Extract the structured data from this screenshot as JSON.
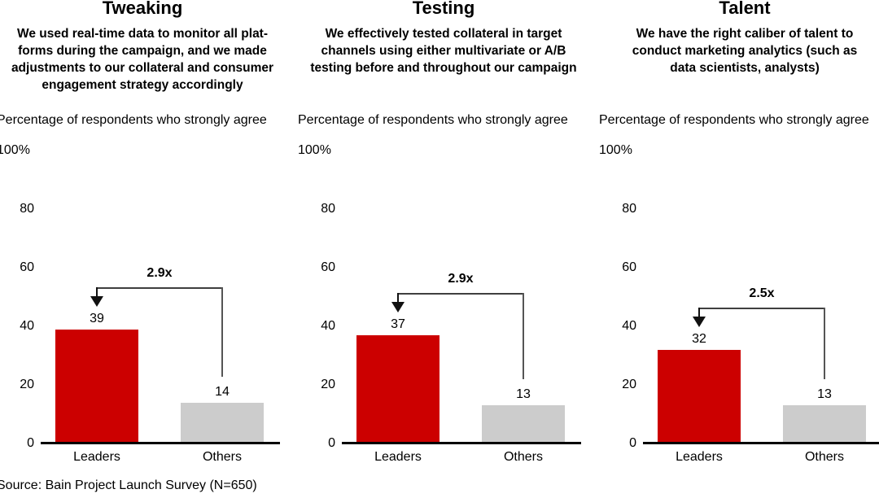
{
  "page": {
    "background": "#ffffff",
    "source_note": "Source: Bain Project Launch Survey (N=650)"
  },
  "styles": {
    "leaders_color": "#cc0000",
    "others_color": "#cccccc",
    "axis_color": "#000000",
    "bracket_color": "#3f3f3f"
  },
  "chart_data": [
    {
      "type": "bar",
      "title": "Tweaking",
      "subtitle": "We used real-time data to monitor all platforms during the campaign, and we made adjustments to our collateral and consumer engagement strategy accordingly",
      "subtitle_lines": [
        "We used real-time data to monitor all plat-",
        "forms during the campaign, and we made",
        "adjustments to our collateral and consumer",
        "engagement strategy accordingly"
      ],
      "ylabel": "Percentage of respondents who strongly agree",
      "top_tick_label": "100%",
      "categories": [
        "Leaders",
        "Others"
      ],
      "values": [
        39,
        14
      ],
      "colors": [
        "#cc0000",
        "#cccccc"
      ],
      "annotation": "2.9x",
      "ylim": [
        0,
        100
      ],
      "yticks": [
        80,
        60,
        40,
        20,
        0
      ],
      "grid": false,
      "legend": "none"
    },
    {
      "type": "bar",
      "title": "Testing",
      "subtitle": "We effectively tested collateral in target channels using either multivariate or A/B testing before and throughout our campaign",
      "subtitle_lines": [
        "We effectively tested collateral in target",
        "channels using either multivariate or A/B",
        "testing before and throughout our campaign"
      ],
      "ylabel": "Percentage of respondents who strongly agree",
      "top_tick_label": "100%",
      "categories": [
        "Leaders",
        "Others"
      ],
      "values": [
        37,
        13
      ],
      "colors": [
        "#cc0000",
        "#cccccc"
      ],
      "annotation": "2.9x",
      "ylim": [
        0,
        100
      ],
      "yticks": [
        80,
        60,
        40,
        20,
        0
      ],
      "grid": false,
      "legend": "none"
    },
    {
      "type": "bar",
      "title": "Talent",
      "subtitle": "We have the right caliber of talent to conduct marketing analytics (such as data scientists, analysts)",
      "subtitle_lines": [
        "We have the right caliber of talent to",
        "conduct marketing analytics (such as",
        "data scientists, analysts)"
      ],
      "ylabel": "Percentage of respondents who strongly agree",
      "top_tick_label": "100%",
      "categories": [
        "Leaders",
        "Others"
      ],
      "values": [
        32,
        13
      ],
      "colors": [
        "#cc0000",
        "#cccccc"
      ],
      "annotation": "2.5x",
      "ylim": [
        0,
        100
      ],
      "yticks": [
        80,
        60,
        40,
        20,
        0
      ],
      "grid": false,
      "legend": "none"
    }
  ]
}
